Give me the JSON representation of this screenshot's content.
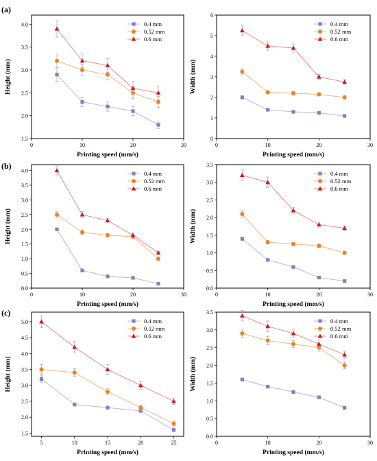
{
  "colors": {
    "series": [
      "#8080c0",
      "#f08020",
      "#c81e1e"
    ],
    "lines": [
      "#b8b8dc",
      "#f5b47a",
      "#e88a8a"
    ],
    "errorbars": "#b0b0b0"
  },
  "markers": [
    "square-icon",
    "circle-icon",
    "triangle-icon"
  ],
  "panels": [
    {
      "label": "(a)"
    },
    {
      "label": "(b)"
    },
    {
      "label": "(c)"
    }
  ],
  "chart_data": [
    {
      "type": "line",
      "panel": "(a)",
      "side": "left",
      "xlabel": "Printing speed (mm/s)",
      "ylabel": "Height (mm)",
      "xlim": [
        0,
        30
      ],
      "ylim": [
        1.5,
        4.2
      ],
      "xticks": [
        "0",
        "10",
        "20",
        "30"
      ],
      "yticks": [
        "1.5",
        "2.0",
        "2.5",
        "3.0",
        "3.5",
        "4.0"
      ],
      "legend_position": "top-right",
      "x": [
        5,
        10,
        15,
        20,
        25
      ],
      "series": [
        {
          "name": "0.4 mm",
          "values": [
            2.9,
            2.3,
            2.2,
            2.1,
            1.8
          ],
          "err": [
            0.15,
            0.1,
            0.1,
            0.1,
            0.08
          ]
        },
        {
          "name": "0.52 mm",
          "values": [
            3.2,
            3.0,
            2.9,
            2.5,
            2.3
          ],
          "err": [
            0.15,
            0.12,
            0.12,
            0.12,
            0.12
          ]
        },
        {
          "name": "0.6 mm",
          "values": [
            3.9,
            3.2,
            3.1,
            2.6,
            2.5
          ],
          "err": [
            0.18,
            0.15,
            0.15,
            0.15,
            0.15
          ]
        }
      ]
    },
    {
      "type": "line",
      "panel": "(a)",
      "side": "right",
      "xlabel": "Printing speed (mm/s)",
      "ylabel": "Width (mm)",
      "xlim": [
        0,
        30
      ],
      "ylim": [
        0,
        6
      ],
      "xticks": [
        "0",
        "10",
        "20",
        "30"
      ],
      "yticks": [
        "0",
        "1",
        "2",
        "3",
        "4",
        "5",
        "6"
      ],
      "legend_position": "top-right",
      "x": [
        5,
        10,
        15,
        20,
        25
      ],
      "series": [
        {
          "name": "0.4 mm",
          "values": [
            2.0,
            1.4,
            1.3,
            1.25,
            1.1
          ],
          "err": [
            0.08,
            0.05,
            0.05,
            0.05,
            0.05
          ]
        },
        {
          "name": "0.52 mm",
          "values": [
            3.25,
            2.25,
            2.2,
            2.15,
            2.0
          ],
          "err": [
            0.15,
            0.08,
            0.08,
            0.08,
            0.08
          ]
        },
        {
          "name": "0.6 mm",
          "values": [
            5.25,
            4.5,
            4.4,
            3.0,
            2.75
          ],
          "err": [
            0.25,
            0.2,
            0.2,
            0.12,
            0.12
          ]
        }
      ]
    },
    {
      "type": "line",
      "panel": "(b)",
      "side": "left",
      "xlabel": "Printing speed (mm/s)",
      "ylabel": "Height (mm)",
      "xlim": [
        0,
        30
      ],
      "ylim": [
        0,
        4.2
      ],
      "xticks": [
        "0",
        "10",
        "20",
        "30"
      ],
      "yticks": [
        "0.0",
        "0.5",
        "1.0",
        "1.5",
        "2.0",
        "2.5",
        "3.0",
        "3.5",
        "4.0"
      ],
      "legend_position": "top-right",
      "x": [
        5,
        10,
        15,
        20,
        25
      ],
      "series": [
        {
          "name": "0.4 mm",
          "values": [
            2.0,
            0.6,
            0.4,
            0.35,
            0.15
          ],
          "err": [
            0.05,
            0.05,
            0.04,
            0.04,
            0.03
          ]
        },
        {
          "name": "0.52 mm",
          "values": [
            2.5,
            1.9,
            1.8,
            1.75,
            1.0
          ],
          "err": [
            0.1,
            0.08,
            0.06,
            0.06,
            0.05
          ]
        },
        {
          "name": "0.6 mm",
          "values": [
            4.0,
            2.5,
            2.3,
            1.8,
            1.2
          ],
          "err": [
            0.15,
            0.1,
            0.08,
            0.07,
            0.05
          ]
        }
      ]
    },
    {
      "type": "line",
      "panel": "(b)",
      "side": "right",
      "xlabel": "Printing speed (mm/s)",
      "ylabel": "Width (mm)",
      "xlim": [
        0,
        30
      ],
      "ylim": [
        0,
        3.5
      ],
      "xticks": [
        "0",
        "10",
        "20",
        "30"
      ],
      "yticks": [
        "0.0",
        "0.5",
        "1.0",
        "1.5",
        "2.0",
        "2.5",
        "3.0",
        "3.5"
      ],
      "legend_position": "top-right",
      "x": [
        5,
        10,
        15,
        20,
        25
      ],
      "series": [
        {
          "name": "0.4 mm",
          "values": [
            1.4,
            0.8,
            0.6,
            0.3,
            0.2
          ],
          "err": [
            0.05,
            0.04,
            0.03,
            0.03,
            0.02
          ]
        },
        {
          "name": "0.52 mm",
          "values": [
            2.1,
            1.3,
            1.25,
            1.2,
            1.0
          ],
          "err": [
            0.1,
            0.05,
            0.05,
            0.05,
            0.05
          ]
        },
        {
          "name": "0.6 mm",
          "values": [
            3.2,
            3.0,
            2.2,
            1.8,
            1.7
          ],
          "err": [
            0.15,
            0.15,
            0.08,
            0.07,
            0.07
          ]
        }
      ]
    },
    {
      "type": "line",
      "panel": "(c)",
      "side": "left",
      "xlabel": "Printing speed (mm/s)",
      "ylabel": "Height (mm)",
      "xlim": [
        3.5,
        26.5
      ],
      "ylim": [
        1.4,
        5.3
      ],
      "xticks": [
        "5",
        "10",
        "15",
        "20",
        "25"
      ],
      "yticks": [
        "1.5",
        "2.0",
        "2.5",
        "3.0",
        "3.5",
        "4.0",
        "4.5",
        "5.0"
      ],
      "legend_position": "top-right",
      "x": [
        5,
        10,
        15,
        20,
        25
      ],
      "series": [
        {
          "name": "0.4 mm",
          "values": [
            3.2,
            2.4,
            2.3,
            2.2,
            1.6
          ],
          "err": [
            0.1,
            0.05,
            0.05,
            0.05,
            0.05
          ]
        },
        {
          "name": "0.52 mm",
          "values": [
            3.5,
            3.4,
            2.8,
            2.3,
            1.8
          ],
          "err": [
            0.15,
            0.12,
            0.1,
            0.08,
            0.08
          ]
        },
        {
          "name": "0.6 mm",
          "values": [
            5.0,
            4.2,
            3.5,
            3.0,
            2.5
          ],
          "err": [
            0.18,
            0.18,
            0.15,
            0.12,
            0.1
          ]
        }
      ]
    },
    {
      "type": "line",
      "panel": "(c)",
      "side": "right",
      "xlabel": "Printing speed (mm/s)",
      "ylabel": "Width (mm)",
      "xlim": [
        0,
        30
      ],
      "ylim": [
        0,
        3.5
      ],
      "xticks": [
        "0",
        "10",
        "20",
        "30"
      ],
      "yticks": [
        "0.0",
        "0.5",
        "1.0",
        "1.5",
        "2.0",
        "2.5",
        "3.0",
        "3.5"
      ],
      "legend_position": "top-right",
      "x": [
        5,
        10,
        15,
        20,
        25
      ],
      "series": [
        {
          "name": "0.4 mm",
          "values": [
            1.6,
            1.4,
            1.25,
            1.1,
            0.8
          ],
          "err": [
            0.04,
            0.04,
            0.04,
            0.04,
            0.04
          ]
        },
        {
          "name": "0.52 mm",
          "values": [
            2.9,
            2.7,
            2.6,
            2.5,
            2.0
          ],
          "err": [
            0.12,
            0.12,
            0.1,
            0.1,
            0.1
          ]
        },
        {
          "name": "0.6 mm",
          "values": [
            3.4,
            3.1,
            2.9,
            2.6,
            2.3
          ],
          "err": [
            0.15,
            0.15,
            0.12,
            0.12,
            0.1
          ]
        }
      ]
    }
  ]
}
